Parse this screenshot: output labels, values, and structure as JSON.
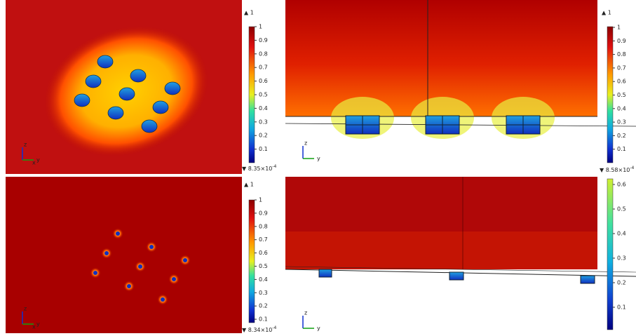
{
  "panels": [
    {
      "max_label": "▲ 1",
      "min_label": {
        "text": "▼ 8.35×10",
        "exp": "-4"
      },
      "colorbar_ticks": [
        1,
        0.9,
        0.8,
        0.7,
        0.6,
        0.5,
        0.4,
        0.3,
        0.2,
        0.1
      ],
      "axes": [
        "z",
        "y",
        "x"
      ]
    },
    {
      "max_label": "▲ 1",
      "min_label": {
        "text": "▼ 8.58×10",
        "exp": "-4"
      },
      "colorbar_ticks": [
        1,
        0.9,
        0.8,
        0.7,
        0.6,
        0.5,
        0.4,
        0.3,
        0.2,
        0.1
      ],
      "axes": [
        "z",
        "y"
      ]
    },
    {
      "max_label": "▲ 1",
      "min_label": {
        "text": "▼ 8.34×10",
        "exp": "-4"
      },
      "colorbar_ticks": [
        1,
        0.9,
        0.8,
        0.7,
        0.6,
        0.5,
        0.4,
        0.3,
        0.2,
        0.1
      ],
      "axes": [
        "z",
        "y",
        "x"
      ]
    },
    {
      "max_label": null,
      "min_label": null,
      "colorbar_ticks": [
        0.6,
        0.5,
        0.4,
        0.3,
        0.2,
        0.1
      ],
      "axes": [
        "z",
        "y"
      ]
    }
  ]
}
